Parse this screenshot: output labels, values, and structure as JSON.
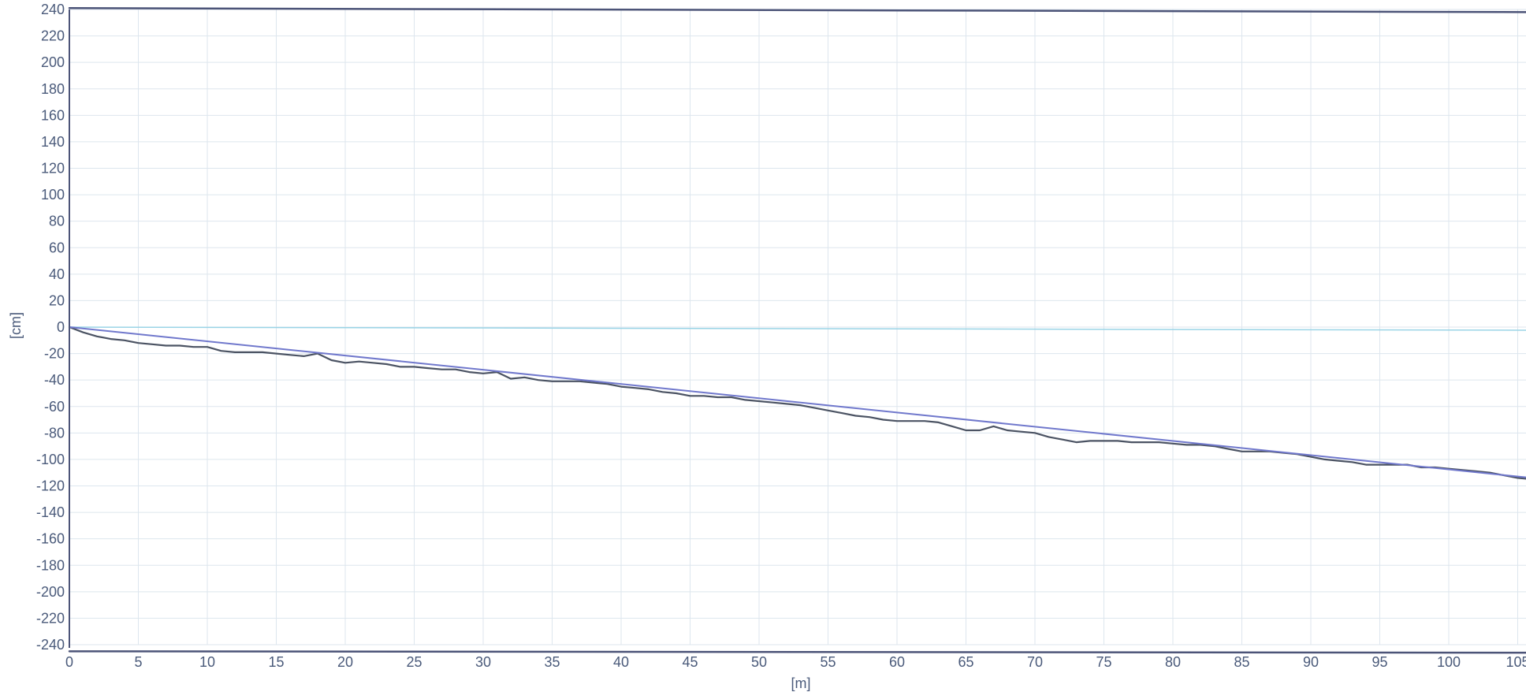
{
  "chart_data": {
    "type": "line",
    "title": "",
    "xlabel": "[m]",
    "ylabel": "[cm]",
    "xlim": [
      0,
      105
    ],
    "ylim": [
      -240,
      240
    ],
    "grid": true,
    "x_ticks": [
      0,
      5,
      10,
      15,
      20,
      25,
      30,
      35,
      40,
      45,
      50,
      55,
      60,
      65,
      70,
      75,
      80,
      85,
      90,
      95,
      100,
      105
    ],
    "y_ticks": [
      240,
      220,
      200,
      180,
      160,
      140,
      120,
      100,
      80,
      60,
      40,
      20,
      0,
      -20,
      -40,
      -60,
      -80,
      -100,
      -120,
      -140,
      -160,
      -180,
      -200,
      -220,
      -240
    ],
    "colors": {
      "measured": "#4b5363",
      "trend": "#7078cc",
      "zero": "#9ad4e6",
      "grid": "#dde6ee",
      "frame": "#4c5478"
    },
    "series": [
      {
        "id": "measured",
        "x": [
          0,
          1,
          2,
          3,
          4,
          5,
          6,
          7,
          8,
          9,
          10,
          11,
          12,
          13,
          14,
          15,
          16,
          17,
          18,
          19,
          20,
          21,
          22,
          23,
          24,
          25,
          26,
          27,
          28,
          29,
          30,
          31,
          32,
          33,
          34,
          35,
          36,
          37,
          38,
          39,
          40,
          41,
          42,
          43,
          44,
          45,
          46,
          47,
          48,
          49,
          50,
          51,
          52,
          53,
          54,
          55,
          56,
          57,
          58,
          59,
          60,
          61,
          62,
          63,
          64,
          65,
          66,
          67,
          68,
          69,
          70,
          71,
          72,
          73,
          74,
          75,
          76,
          77,
          78,
          79,
          80,
          81,
          82,
          83,
          84,
          85,
          86,
          87,
          88,
          89,
          90,
          91,
          92,
          93,
          94,
          95,
          96,
          97,
          98,
          99,
          100,
          101,
          102,
          103,
          104,
          105,
          106
        ],
        "values": [
          0,
          -4,
          -7,
          -9,
          -10,
          -12,
          -13,
          -14,
          -14,
          -15,
          -15,
          -18,
          -19,
          -19,
          -19,
          -20,
          -21,
          -22,
          -20,
          -25,
          -27,
          -26,
          -27,
          -28,
          -30,
          -30,
          -31,
          -32,
          -32,
          -34,
          -35,
          -34,
          -39,
          -38,
          -40,
          -41,
          -41,
          -41,
          -42,
          -43,
          -45,
          -46,
          -47,
          -49,
          -50,
          -52,
          -52,
          -53,
          -53,
          -55,
          -56,
          -57,
          -58,
          -59,
          -61,
          -63,
          -65,
          -67,
          -68,
          -70,
          -71,
          -71,
          -71,
          -72,
          -75,
          -78,
          -78,
          -75,
          -78,
          -79,
          -80,
          -83,
          -85,
          -87,
          -86,
          -86,
          -86,
          -87,
          -87,
          -87,
          -88,
          -89,
          -89,
          -90,
          -92,
          -94,
          -94,
          -94,
          -95,
          -96,
          -98,
          -100,
          -101,
          -102,
          -104,
          -104,
          -104,
          -104,
          -106,
          -106,
          -107,
          -108,
          -109,
          -110,
          -112,
          -114,
          -115
        ]
      },
      {
        "id": "trend",
        "x": [
          0,
          106
        ],
        "values": [
          0,
          -114
        ]
      },
      {
        "id": "upper-reference",
        "x": [
          0,
          106
        ],
        "values": [
          241,
          238
        ]
      },
      {
        "id": "lower-reference",
        "x": [
          0,
          106
        ],
        "values": [
          -245,
          -246
        ]
      }
    ]
  }
}
